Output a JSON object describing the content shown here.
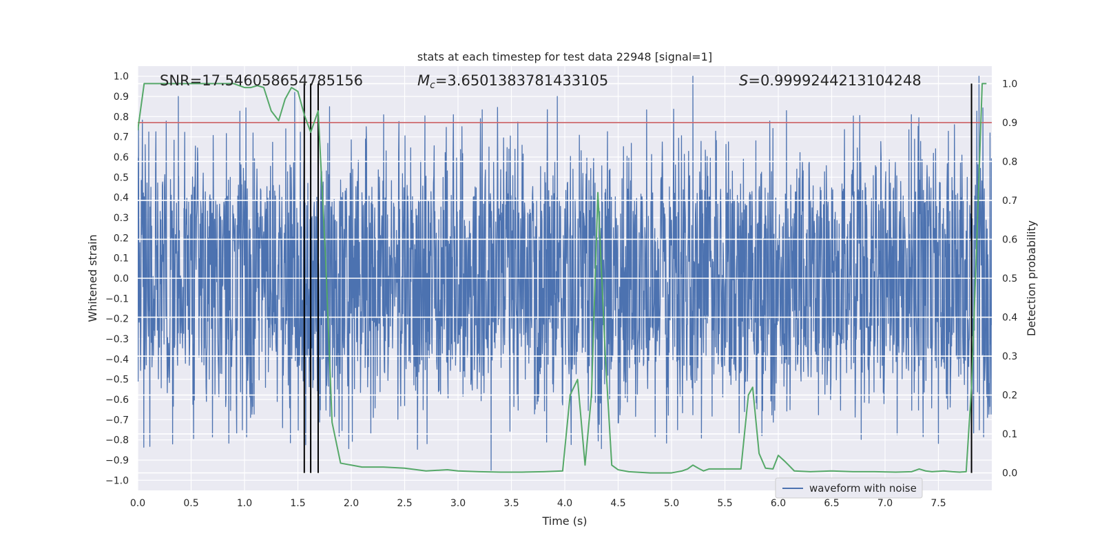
{
  "chart_data": {
    "type": "line",
    "title": "stats at each timestep for test data 22948 [signal=1]",
    "xlabel": "Time (s)",
    "ylabel": "Whitened strain",
    "ylabel_right": "Detection probability",
    "xlim": [
      0,
      8
    ],
    "ylim_left": [
      -1.05,
      1.05
    ],
    "ylim_right": [
      -0.045,
      1.045
    ],
    "x_ticks": [
      "0.0",
      "0.5",
      "1.0",
      "1.5",
      "2.0",
      "2.5",
      "3.0",
      "3.5",
      "4.0",
      "4.5",
      "5.0",
      "5.5",
      "6.0",
      "6.5",
      "7.0",
      "7.5"
    ],
    "y_ticks_left": [
      "1.0",
      "0.9",
      "0.8",
      "0.7",
      "0.6",
      "0.5",
      "0.4",
      "0.3",
      "0.2",
      "0.1",
      "0.0",
      "−0.1",
      "−0.2",
      "−0.3",
      "−0.4",
      "−0.5",
      "−0.6",
      "−0.7",
      "−0.8",
      "−0.9",
      "−1.0"
    ],
    "y_ticks_right": [
      "1.0",
      "0.9",
      "0.8",
      "0.7",
      "0.6",
      "0.5",
      "0.4",
      "0.3",
      "0.2",
      "0.1",
      "0.0"
    ],
    "annotations": {
      "snr_text": "SNR=17.546058654785156",
      "mc_prefix": "M",
      "mc_sub": "c",
      "mc_value": "=3.6501383781433105",
      "s_prefix": "S",
      "s_value": "=0.9999244213104248"
    },
    "legend": {
      "label": "waveform with noise",
      "placement": "lower-right"
    },
    "threshold": {
      "axis": "right",
      "y": 0.9,
      "color": "#c44e52"
    },
    "vertical_markers": [
      1.56,
      1.62,
      1.69,
      7.81
    ],
    "waveform": {
      "name": "waveform with noise",
      "color": "#4c72b0",
      "x_range": [
        0,
        8
      ],
      "envelope_typical": 0.5,
      "peak_x": [
        0.38,
        1.47,
        3.93,
        5.2,
        7.88
      ],
      "peak_y": [
        0.9,
        0.92,
        0.9,
        1.0,
        1.0
      ]
    },
    "series": [
      {
        "name": "Detection probability",
        "axis": "right",
        "color": "#55a868",
        "x": [
          0.0,
          0.06,
          0.1,
          0.2,
          0.3,
          0.4,
          0.5,
          0.6,
          0.7,
          0.8,
          0.9,
          1.0,
          1.06,
          1.12,
          1.18,
          1.25,
          1.32,
          1.38,
          1.44,
          1.5,
          1.56,
          1.62,
          1.69,
          1.76,
          1.82,
          1.9,
          2.0,
          2.1,
          2.2,
          2.3,
          2.5,
          2.7,
          2.9,
          3.0,
          3.2,
          3.4,
          3.6,
          3.8,
          3.98,
          4.05,
          4.12,
          4.19,
          4.25,
          4.31,
          4.38,
          4.44,
          4.5,
          4.6,
          4.8,
          5.0,
          5.1,
          5.15,
          5.2,
          5.25,
          5.3,
          5.35,
          5.45,
          5.55,
          5.65,
          5.72,
          5.76,
          5.82,
          5.88,
          5.95,
          6.0,
          6.06,
          6.15,
          6.3,
          6.5,
          6.7,
          6.9,
          7.1,
          7.25,
          7.32,
          7.38,
          7.44,
          7.55,
          7.63,
          7.7,
          7.76,
          7.81,
          7.86,
          7.91,
          7.95
        ],
        "y": [
          0.88,
          1.0,
          1.0,
          1.0,
          1.0,
          1.0,
          1.0,
          1.0,
          1.0,
          1.0,
          1.0,
          0.99,
          0.99,
          0.995,
          0.99,
          0.93,
          0.905,
          0.96,
          0.99,
          0.98,
          0.92,
          0.875,
          0.93,
          0.55,
          0.13,
          0.025,
          0.02,
          0.015,
          0.015,
          0.015,
          0.012,
          0.005,
          0.008,
          0.005,
          0.003,
          0.002,
          0.002,
          0.003,
          0.005,
          0.2,
          0.24,
          0.02,
          0.2,
          0.72,
          0.3,
          0.02,
          0.008,
          0.003,
          0.0,
          0.0,
          0.005,
          0.01,
          0.02,
          0.012,
          0.005,
          0.01,
          0.01,
          0.01,
          0.01,
          0.2,
          0.22,
          0.05,
          0.012,
          0.01,
          0.045,
          0.03,
          0.005,
          0.003,
          0.005,
          0.003,
          0.003,
          0.002,
          0.003,
          0.01,
          0.005,
          0.003,
          0.005,
          0.003,
          0.002,
          0.003,
          0.22,
          0.6,
          1.0,
          1.0
        ]
      }
    ]
  }
}
